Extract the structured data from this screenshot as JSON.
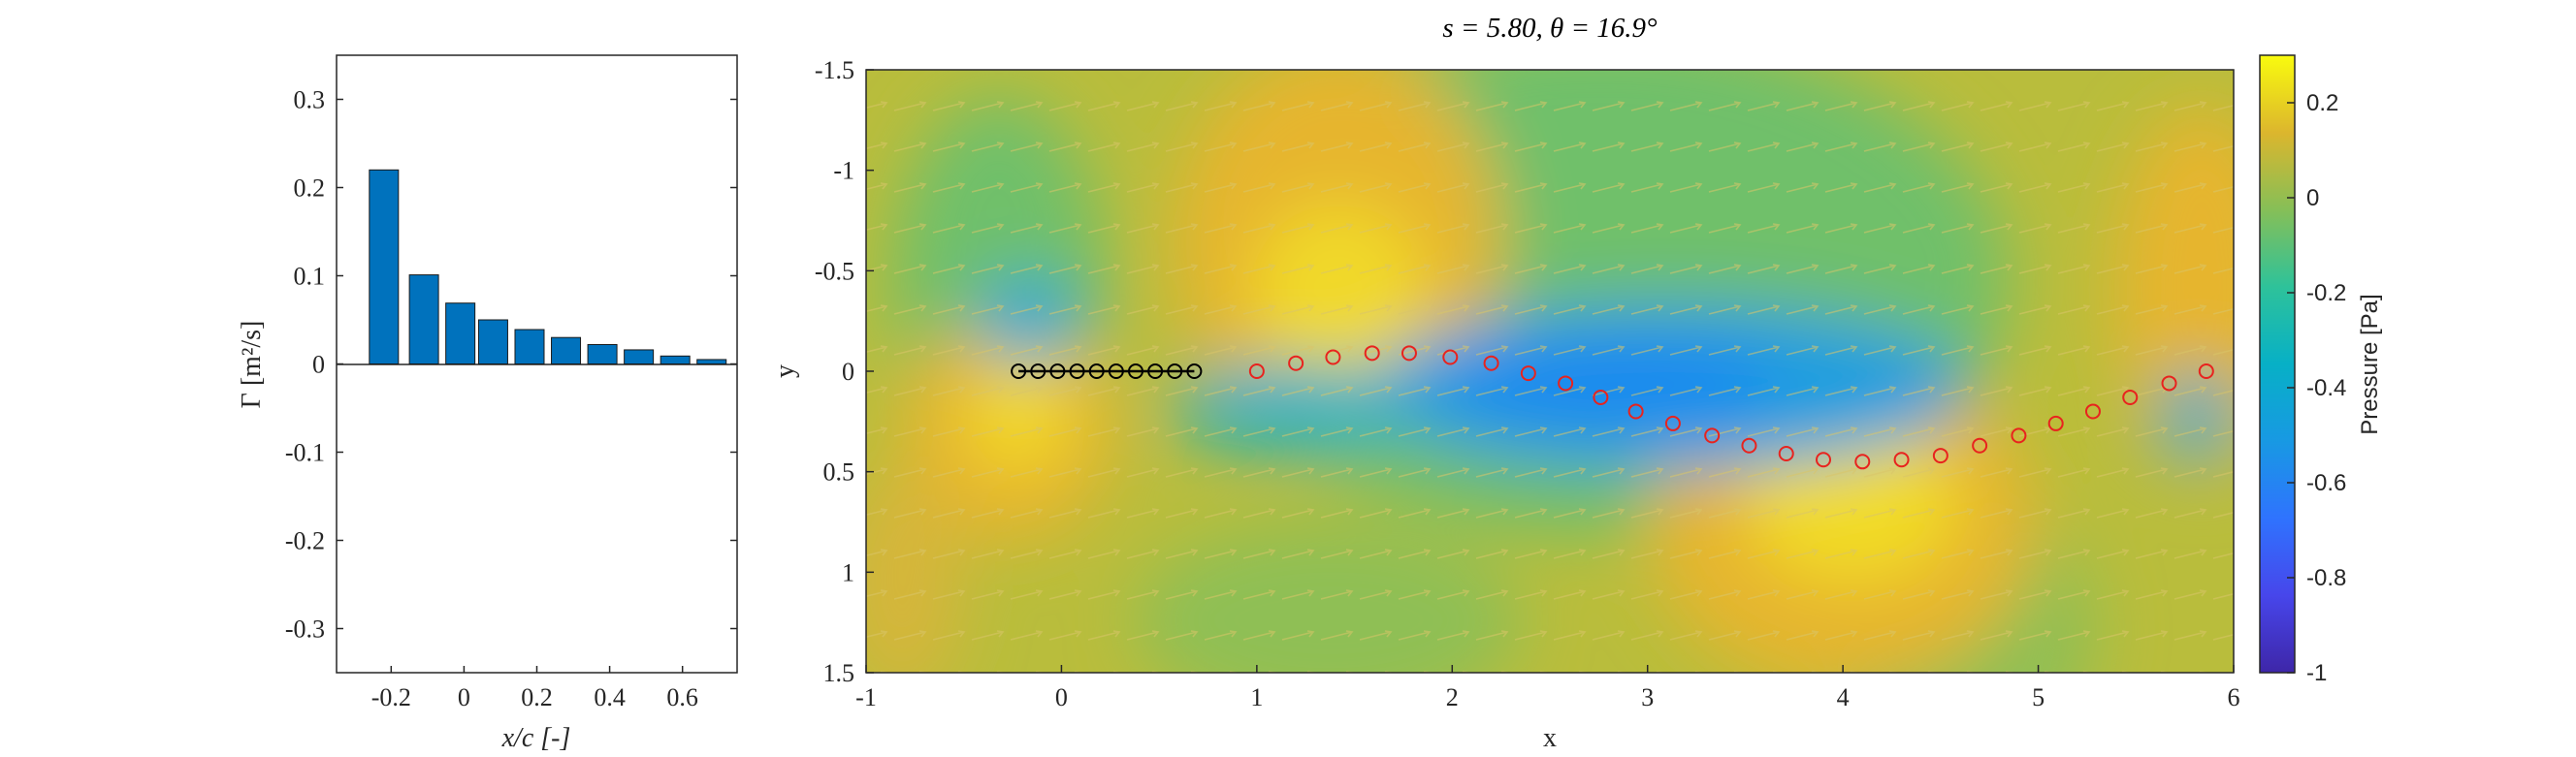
{
  "chart_data": [
    {
      "type": "bar",
      "xlabel": "x/c [-]",
      "ylabel": "Γ [m²/s]",
      "xlim": [
        -0.35,
        0.75
      ],
      "ylim": [
        -0.35,
        0.35
      ],
      "x": [
        -0.22,
        -0.11,
        -0.01,
        0.08,
        0.18,
        0.28,
        0.38,
        0.48,
        0.58,
        0.68
      ],
      "values": [
        0.22,
        0.101,
        0.069,
        0.05,
        0.039,
        0.03,
        0.022,
        0.016,
        0.009,
        0.005
      ],
      "bar_color": "#0072BD",
      "xticks": [
        "-0.2",
        "0",
        "0.2",
        "0.4",
        "0.6"
      ],
      "yticks": [
        "-0.3",
        "-0.2",
        "-0.1",
        "0",
        "0.1",
        "0.2",
        "0.3"
      ]
    },
    {
      "type": "heatmap",
      "title": "s = 5.80, θ = 16.9°",
      "xlabel": "x",
      "ylabel": "y",
      "xlim": [
        -1,
        6
      ],
      "ylim": [
        1.5,
        -1.5
      ],
      "xticks": [
        "-1",
        "0",
        "1",
        "2",
        "3",
        "4",
        "5",
        "6"
      ],
      "yticks": [
        "-1.5",
        "-1",
        "-0.5",
        "0",
        "0.5",
        "1",
        "1.5"
      ],
      "colorbar": {
        "label": "Pressure [Pa]",
        "range": [
          -1,
          0.3
        ],
        "ticks": [
          "0.2",
          "0",
          "-0.2",
          "-0.4",
          "-0.6",
          "-0.8",
          "-1"
        ],
        "colormap": "parula"
      },
      "plate_points": {
        "color": "#000000",
        "x": [
          -0.22,
          -0.12,
          -0.02,
          0.08,
          0.18,
          0.28,
          0.38,
          0.48,
          0.58,
          0.68
        ],
        "y": [
          0,
          0,
          0,
          0,
          0,
          0,
          0,
          0,
          0,
          0
        ]
      },
      "wake_points": {
        "color": "#E8231E",
        "x": [
          1.0,
          1.2,
          1.39,
          1.59,
          1.78,
          1.99,
          2.2,
          2.39,
          2.58,
          2.76,
          2.94,
          3.13,
          3.33,
          3.52,
          3.71,
          3.9,
          4.1,
          4.3,
          4.5,
          4.7,
          4.9,
          5.09,
          5.28,
          5.47,
          5.67,
          5.86
        ],
        "y": [
          0.0,
          -0.04,
          -0.07,
          -0.09,
          -0.09,
          -0.07,
          -0.04,
          0.01,
          0.06,
          0.13,
          0.2,
          0.26,
          0.32,
          0.37,
          0.41,
          0.44,
          0.45,
          0.44,
          0.42,
          0.37,
          0.32,
          0.26,
          0.2,
          0.13,
          0.06,
          0.0
        ]
      }
    }
  ]
}
